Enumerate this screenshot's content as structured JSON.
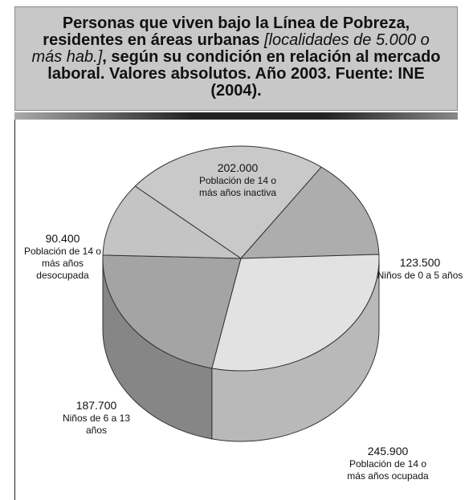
{
  "chart_data": {
    "type": "pie3d",
    "title": [
      "Personas que viven bajo la Línea de Pobreza, residentes en áreas urbanas ",
      "[localidades de 5.000 o más hab.]",
      ", según su condición en relación al mercado laboral. Valores absolutos. Año 2003. Fuente: INE (2004)."
    ],
    "categories": [
      "Población de 14 o más años inactiva",
      "Niños de 0 a 5 años",
      "Población de 14 o más años ocupada",
      "Niños de 6 a 13 años",
      "Población de 14 o más años desocupada"
    ],
    "values": [
      202000,
      123500,
      245900,
      187700,
      90400
    ],
    "value_labels": [
      "202.000",
      "123.500",
      "245.900",
      "187.700",
      "90.400"
    ],
    "colors": [
      "#c9c9c9",
      "#adadad",
      "#e2e2e2",
      "#a4a4a4",
      "#c4c4c4"
    ]
  }
}
